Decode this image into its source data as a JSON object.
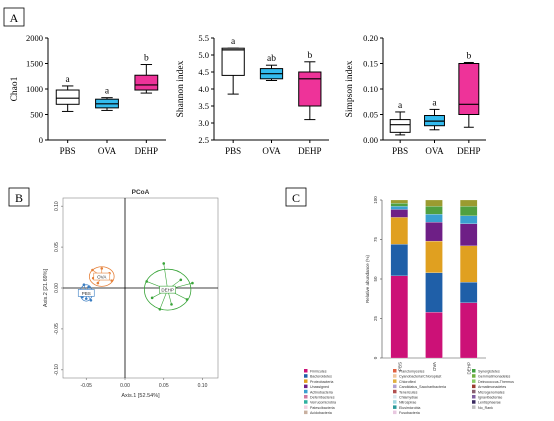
{
  "panels": {
    "a": {
      "letter": "A"
    },
    "b": {
      "letter": "B"
    },
    "c": {
      "letter": "C"
    }
  },
  "chart_data": [
    {
      "id": "chao1",
      "type": "box",
      "ylabel": "Chao1",
      "ylim": [
        0,
        2000
      ],
      "yticks": [
        0,
        500,
        1000,
        1500,
        2000
      ],
      "categories": [
        "PBS",
        "OVA",
        "DEHP"
      ],
      "colors": [
        "#ffffff",
        "#33bbee",
        "#ee3399"
      ],
      "boxes": [
        {
          "min": 560,
          "q1": 700,
          "median": 820,
          "q3": 980,
          "max": 1060,
          "label": "a"
        },
        {
          "min": 580,
          "q1": 630,
          "median": 710,
          "q3": 800,
          "max": 830,
          "label": "a"
        },
        {
          "min": 920,
          "q1": 980,
          "median": 1080,
          "q3": 1270,
          "max": 1480,
          "label": "b"
        }
      ]
    },
    {
      "id": "shannon",
      "type": "box",
      "ylabel": "Shannon index",
      "ylim": [
        2.5,
        5.5
      ],
      "yticks": [
        2.5,
        3.0,
        3.5,
        4.0,
        4.5,
        5.0,
        5.5
      ],
      "categories": [
        "PBS",
        "OVA",
        "DEHP"
      ],
      "colors": [
        "#ffffff",
        "#33bbee",
        "#ee3399"
      ],
      "boxes": [
        {
          "min": 3.85,
          "q1": 4.4,
          "median": 5.15,
          "q3": 5.2,
          "max": 5.2,
          "label": "a"
        },
        {
          "min": 4.25,
          "q1": 4.3,
          "median": 4.45,
          "q3": 4.6,
          "max": 4.7,
          "label": "ab"
        },
        {
          "min": 3.1,
          "q1": 3.5,
          "median": 4.3,
          "q3": 4.5,
          "max": 4.8,
          "label": "b"
        }
      ]
    },
    {
      "id": "simpson",
      "type": "box",
      "ylabel": "Simpson index",
      "ylim": [
        0,
        0.2
      ],
      "yticks": [
        0.0,
        0.05,
        0.1,
        0.15,
        0.2
      ],
      "categories": [
        "PBS",
        "OVA",
        "DEHP"
      ],
      "colors": [
        "#ffffff",
        "#33bbee",
        "#ee3399"
      ],
      "boxes": [
        {
          "min": 0.01,
          "q1": 0.015,
          "median": 0.03,
          "q3": 0.04,
          "max": 0.055,
          "label": "a"
        },
        {
          "min": 0.02,
          "q1": 0.028,
          "median": 0.037,
          "q3": 0.048,
          "max": 0.06,
          "label": "a"
        },
        {
          "min": 0.025,
          "q1": 0.05,
          "median": 0.07,
          "q3": 0.15,
          "max": 0.152,
          "label": "b"
        }
      ]
    },
    {
      "id": "pcoa",
      "type": "scatter",
      "title": "PCoA",
      "xlabel": "Axis.1  [52.54%]",
      "ylabel": "Axis.2  [21.69%]",
      "xlim": [
        -0.08,
        0.12
      ],
      "ylim": [
        -0.11,
        0.11
      ],
      "xticks": [
        -0.05,
        0,
        0.05,
        0.1
      ],
      "yticks": [
        -0.1,
        -0.05,
        0,
        0.05,
        0.1
      ],
      "xtick_labels": [
        "-0.05",
        "0.00",
        "0.05",
        "0.10"
      ],
      "ytick_labels": [
        "-0.10",
        "-0.05",
        "0.00",
        "0.05",
        "0.10"
      ],
      "groups": [
        {
          "name": "OVA",
          "color": "#e6813a",
          "center": [
            -0.03,
            0.014
          ],
          "rx": 0.016,
          "ry": 0.012,
          "points": [
            [
              -0.042,
              0.022
            ],
            [
              -0.03,
              0.024
            ],
            [
              -0.02,
              0.018
            ],
            [
              -0.017,
              0.009
            ],
            [
              -0.035,
              0.006
            ],
            [
              -0.041,
              0.012
            ]
          ]
        },
        {
          "name": "PBS",
          "color": "#3a7dc2",
          "center": [
            -0.05,
            -0.006
          ],
          "rx": 0.008,
          "ry": 0.01,
          "points": [
            [
              -0.058,
              -0.004
            ],
            [
              -0.053,
              0.004
            ],
            [
              -0.047,
              0.001
            ],
            [
              -0.05,
              -0.013
            ],
            [
              -0.044,
              -0.015
            ],
            [
              -0.055,
              -0.011
            ]
          ]
        },
        {
          "name": "DEHP",
          "color": "#3aa53a",
          "center": [
            0.055,
            -0.002
          ],
          "rx": 0.03,
          "ry": 0.025,
          "points": [
            [
              0.028,
              0.008
            ],
            [
              0.05,
              0.03
            ],
            [
              0.072,
              0.01
            ],
            [
              0.087,
              0.006
            ],
            [
              0.08,
              -0.014
            ],
            [
              0.06,
              -0.02
            ],
            [
              0.035,
              -0.012
            ],
            [
              0.045,
              -0.026
            ]
          ]
        }
      ]
    },
    {
      "id": "composition",
      "type": "stacked_bar",
      "ylabel": "Relative abundance (%)",
      "categories": [
        "PBS",
        "OVA",
        "DEHP"
      ],
      "yticks": [
        0,
        25,
        50,
        75,
        100
      ],
      "series": [
        {
          "name": "Firmicutes",
          "color": "#cc1177",
          "values": [
            52,
            29,
            35
          ]
        },
        {
          "name": "Bacteroidetes",
          "color": "#1f5fa8",
          "values": [
            20,
            25,
            13
          ]
        },
        {
          "name": "Proteobacteria",
          "color": "#e0a020",
          "values": [
            17,
            20,
            23
          ]
        },
        {
          "name": "Unassigned",
          "color": "#6e1f86",
          "values": [
            5,
            12,
            14
          ]
        },
        {
          "name": "Actinobacteria",
          "color": "#3aa0d0",
          "values": [
            2,
            5,
            5
          ]
        },
        {
          "name": "Deferribacteres",
          "color": "#50a040",
          "values": [
            2,
            5,
            6
          ]
        },
        {
          "name": "Verrucomicrobia",
          "color": "#9b9b30",
          "values": [
            2,
            4,
            4
          ]
        }
      ]
    }
  ],
  "legend": [
    {
      "name": "Firmicutes",
      "color": "#cc1177"
    },
    {
      "name": "Bacteroidetes",
      "color": "#1f5fa8"
    },
    {
      "name": "Proteobacteria",
      "color": "#e0a020"
    },
    {
      "name": "Unassigned",
      "color": "#6e1f86"
    },
    {
      "name": "Actinobacteria",
      "color": "#3aa0d0"
    },
    {
      "name": "Deferribacteres",
      "color": "#d07aa0"
    },
    {
      "name": "Verrucomicrobia",
      "color": "#2fb0a0"
    },
    {
      "name": "Patescibacteria",
      "color": "#f2d0e0"
    },
    {
      "name": "Acidobacteria",
      "color": "#c8b0a0"
    },
    {
      "name": "Planctomycetes",
      "color": "#e06040"
    },
    {
      "name": "Cyanobacteria/Chloroplast",
      "color": "#f0c8a0"
    },
    {
      "name": "Chloroflexi",
      "color": "#e0b040"
    },
    {
      "name": "Candidatus_Saccharibacteria",
      "color": "#b0a0d0"
    },
    {
      "name": "Tenericutes",
      "color": "#b05050"
    },
    {
      "name": "Chlamydiae",
      "color": "#d8e8f0"
    },
    {
      "name": "Nitrospirae",
      "color": "#a0d8e0"
    },
    {
      "name": "Elusimicrobia",
      "color": "#2a9a9a"
    },
    {
      "name": "Fusobacteria",
      "color": "#e8c8e0"
    },
    {
      "name": "Synergistetes",
      "color": "#40a040"
    },
    {
      "name": "Gemmatimonadetes",
      "color": "#70b040"
    },
    {
      "name": "Deinococcus-Thermus",
      "color": "#88cc66"
    },
    {
      "name": "Armatimonadetes",
      "color": "#9a3a30"
    },
    {
      "name": "Microgenomates",
      "color": "#8a6070"
    },
    {
      "name": "Ignavibacteriae",
      "color": "#8060a0"
    },
    {
      "name": "Lentisphaerae",
      "color": "#3a2a60"
    },
    {
      "name": "No_Rank",
      "color": "#c0c0c0"
    }
  ]
}
